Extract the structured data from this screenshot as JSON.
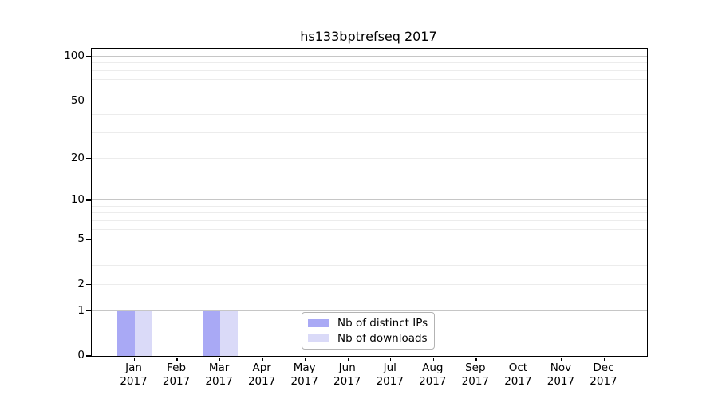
{
  "title": "hs133bptrefseq 2017",
  "chart_data": {
    "type": "bar",
    "title": "hs133bptrefseq 2017",
    "categories": [
      "Jan 2017",
      "Feb 2017",
      "Mar 2017",
      "Apr 2017",
      "May 2017",
      "Jun 2017",
      "Jul 2017",
      "Aug 2017",
      "Sep 2017",
      "Oct 2017",
      "Nov 2017",
      "Dec 2017"
    ],
    "category_months": [
      "Jan",
      "Feb",
      "Mar",
      "Apr",
      "May",
      "Jun",
      "Jul",
      "Aug",
      "Sep",
      "Oct",
      "Nov",
      "Dec"
    ],
    "category_year": "2017",
    "series": [
      {
        "name": "Nb of distinct IPs",
        "color": "#a9a9f5",
        "values": [
          1,
          0,
          1,
          0,
          0,
          0,
          0,
          0,
          0,
          0,
          0,
          0
        ]
      },
      {
        "name": "Nb of downloads",
        "color": "#dadaf8",
        "values": [
          1,
          0,
          1,
          0,
          0,
          0,
          0,
          0,
          0,
          0,
          0,
          0
        ]
      }
    ],
    "xlabel": "",
    "ylabel": "",
    "yscale": "log1p",
    "ylim": [
      0,
      113
    ],
    "ytick_labels": [
      0,
      1,
      2,
      5,
      10,
      20,
      50,
      100
    ],
    "major_gridline_values": [
      1,
      10,
      100
    ],
    "minor_gridline_values": [
      2,
      3,
      4,
      5,
      6,
      7,
      8,
      9,
      20,
      30,
      40,
      50,
      60,
      70,
      80,
      90
    ],
    "grid": "on",
    "legend_position": "lower center",
    "colors": {
      "bar_distinct_ips": "#a9a9f5",
      "bar_downloads": "#dadaf8",
      "major_grid": "#c6c6c6",
      "minor_grid": "#ececec",
      "spine": "#000000",
      "legend_border": "#b3b3b3",
      "background": "#ffffff"
    }
  }
}
